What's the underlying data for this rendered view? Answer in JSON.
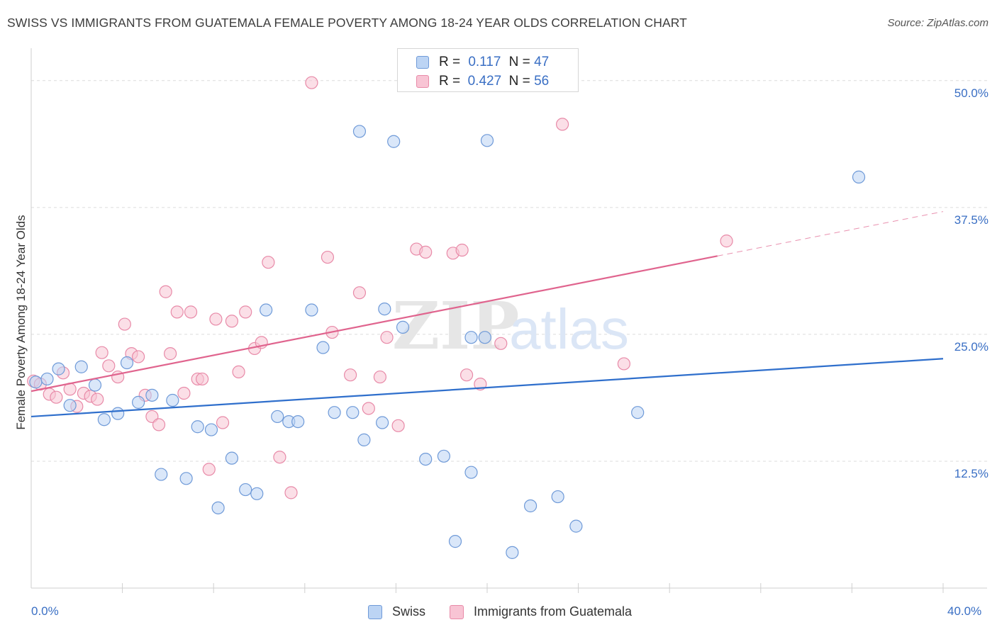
{
  "title": "SWISS VS IMMIGRANTS FROM GUATEMALA FEMALE POVERTY AMONG 18-24 YEAR OLDS CORRELATION CHART",
  "source": "Source: ZipAtlas.com",
  "watermark": {
    "zip": "ZIP",
    "atlas": "atlas"
  },
  "colors": {
    "swiss_fill": "#bcd4f4",
    "swiss_stroke": "#6f9ad8",
    "swiss_line": "#2f6fcc",
    "guat_fill": "#f8c4d4",
    "guat_stroke": "#e88aa8",
    "guat_line": "#e0648e",
    "grid": "#dcdcdc",
    "tick_label": "#3a6fc4"
  },
  "legend_top": [
    {
      "r_label": "R =",
      "r_value": "0.117",
      "n_label": "N =",
      "n_value": "47"
    },
    {
      "r_label": "R =",
      "r_value": "0.427",
      "n_label": "N =",
      "n_value": "56"
    }
  ],
  "chart_data": {
    "type": "scatter",
    "title": "SWISS VS IMMIGRANTS FROM GUATEMALA FEMALE POVERTY AMONG 18-24 YEAR OLDS CORRELATION CHART",
    "xlabel": "",
    "ylabel": "Female Poverty Among 18-24 Year Olds",
    "xlim": [
      0,
      40
    ],
    "ylim": [
      0,
      52.5
    ],
    "x_tick_labels": [
      "0.0%",
      "40.0%"
    ],
    "y_ticks": [
      12.5,
      25.0,
      37.5,
      50.0
    ],
    "y_tick_labels": [
      "12.5%",
      "25.0%",
      "37.5%",
      "50.0%"
    ],
    "grid": true,
    "legend_position": "top-center",
    "series": [
      {
        "name": "Swiss",
        "r": 0.117,
        "n": 47,
        "trend": {
          "x0": 0,
          "y0": 16.9,
          "x1": 40,
          "y1": 22.6
        },
        "points": [
          [
            0.2,
            20.3
          ],
          [
            0.7,
            20.6
          ],
          [
            1.2,
            21.6
          ],
          [
            1.7,
            18.0
          ],
          [
            2.2,
            21.8
          ],
          [
            2.8,
            20.0
          ],
          [
            3.2,
            16.6
          ],
          [
            3.8,
            17.2
          ],
          [
            4.2,
            22.2
          ],
          [
            4.7,
            18.3
          ],
          [
            5.3,
            19.0
          ],
          [
            5.7,
            11.2
          ],
          [
            6.2,
            18.5
          ],
          [
            6.8,
            10.8
          ],
          [
            7.3,
            15.9
          ],
          [
            7.9,
            15.6
          ],
          [
            8.2,
            7.9
          ],
          [
            8.8,
            12.8
          ],
          [
            9.4,
            9.7
          ],
          [
            9.9,
            9.3
          ],
          [
            10.3,
            27.4
          ],
          [
            10.8,
            16.9
          ],
          [
            11.3,
            16.4
          ],
          [
            11.7,
            16.4
          ],
          [
            12.3,
            27.4
          ],
          [
            12.8,
            23.7
          ],
          [
            13.3,
            17.3
          ],
          [
            14.1,
            17.3
          ],
          [
            14.4,
            45.0
          ],
          [
            14.6,
            14.6
          ],
          [
            15.4,
            16.3
          ],
          [
            15.5,
            27.5
          ],
          [
            15.9,
            44.0
          ],
          [
            16.3,
            25.7
          ],
          [
            17.3,
            12.7
          ],
          [
            18.1,
            13.0
          ],
          [
            18.6,
            4.6
          ],
          [
            19.3,
            24.7
          ],
          [
            19.3,
            11.4
          ],
          [
            19.9,
            24.7
          ],
          [
            20.0,
            44.1
          ],
          [
            21.1,
            3.5
          ],
          [
            21.9,
            8.1
          ],
          [
            23.1,
            9.0
          ],
          [
            23.9,
            6.1
          ],
          [
            26.6,
            17.3
          ],
          [
            36.3,
            40.5
          ]
        ]
      },
      {
        "name": "Immigrants from Guatemala",
        "r": 0.427,
        "n": 56,
        "trend": {
          "x0": 0,
          "y0": 19.4,
          "x1": 40,
          "y1": 37.1
        },
        "points": [
          [
            0.1,
            20.4
          ],
          [
            0.4,
            20.1
          ],
          [
            0.8,
            19.1
          ],
          [
            1.1,
            18.8
          ],
          [
            1.4,
            21.2
          ],
          [
            1.7,
            19.6
          ],
          [
            2.0,
            17.9
          ],
          [
            2.3,
            19.2
          ],
          [
            2.6,
            18.9
          ],
          [
            2.9,
            18.6
          ],
          [
            3.1,
            23.2
          ],
          [
            3.4,
            21.9
          ],
          [
            3.8,
            20.8
          ],
          [
            4.1,
            26.0
          ],
          [
            4.4,
            23.1
          ],
          [
            4.7,
            22.8
          ],
          [
            5.0,
            19.0
          ],
          [
            5.3,
            16.9
          ],
          [
            5.6,
            16.1
          ],
          [
            5.9,
            29.2
          ],
          [
            6.1,
            23.1
          ],
          [
            6.4,
            27.2
          ],
          [
            6.7,
            19.2
          ],
          [
            7.0,
            27.2
          ],
          [
            7.3,
            20.6
          ],
          [
            7.5,
            20.6
          ],
          [
            7.8,
            11.7
          ],
          [
            8.1,
            26.5
          ],
          [
            8.4,
            16.3
          ],
          [
            8.8,
            26.3
          ],
          [
            9.1,
            21.3
          ],
          [
            9.4,
            27.2
          ],
          [
            9.8,
            23.6
          ],
          [
            10.1,
            24.2
          ],
          [
            10.4,
            32.1
          ],
          [
            10.9,
            12.9
          ],
          [
            11.4,
            9.4
          ],
          [
            12.3,
            49.8
          ],
          [
            13.0,
            32.6
          ],
          [
            13.2,
            25.2
          ],
          [
            14.0,
            21.0
          ],
          [
            14.4,
            29.1
          ],
          [
            14.8,
            17.7
          ],
          [
            15.3,
            20.8
          ],
          [
            15.6,
            24.7
          ],
          [
            16.1,
            16.0
          ],
          [
            16.9,
            33.4
          ],
          [
            17.3,
            33.1
          ],
          [
            18.5,
            33.0
          ],
          [
            18.9,
            33.3
          ],
          [
            19.1,
            21.0
          ],
          [
            19.7,
            20.1
          ],
          [
            20.6,
            24.1
          ],
          [
            23.3,
            45.7
          ],
          [
            26.0,
            22.1
          ],
          [
            30.5,
            34.2
          ]
        ]
      }
    ]
  },
  "legend_bottom": [
    {
      "label": "Swiss"
    },
    {
      "label": "Immigrants from Guatemala"
    }
  ]
}
